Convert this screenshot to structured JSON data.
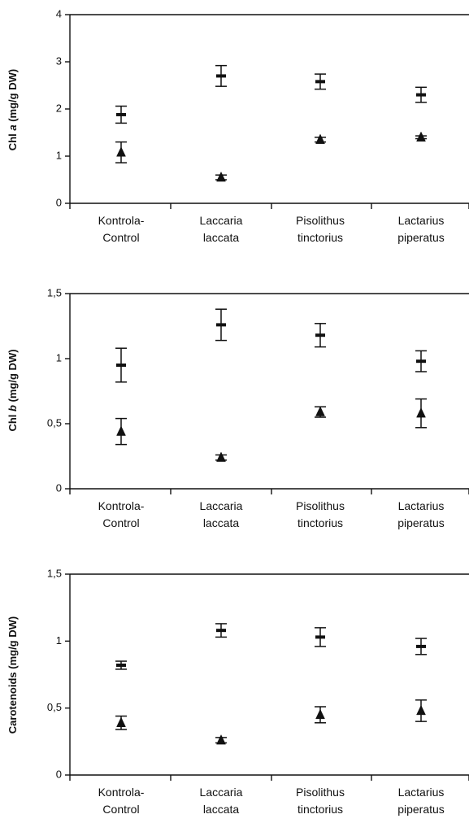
{
  "chart_data": [
    {
      "type": "scatter",
      "ylabel_prefix": "Chl ",
      "ylabel_italic": "a",
      "ylabel_suffix": "  (mg/g DW)",
      "categories": [
        "Kontrola-\nControl",
        "Laccaria\nlaccata",
        "Pisolithus\ntinctorius",
        "Lactarius\npiperatus"
      ],
      "yticks": [
        "0",
        "1",
        "2",
        "3",
        "4"
      ],
      "ylim": [
        0,
        4
      ],
      "grid": false,
      "series": [
        {
          "marker": "dash",
          "values": [
            1.88,
            2.7,
            2.58,
            2.3
          ],
          "errors": [
            0.18,
            0.22,
            0.16,
            0.16
          ]
        },
        {
          "marker": "triangle",
          "values": [
            1.08,
            0.55,
            1.35,
            1.4
          ],
          "errors": [
            0.22,
            0.05,
            0.05,
            0.03
          ]
        }
      ]
    },
    {
      "type": "scatter",
      "ylabel_prefix": "Chl ",
      "ylabel_italic": "b",
      "ylabel_suffix": "  (mg/g DW)",
      "categories": [
        "Kontrola-\nControl",
        "Laccaria\nlaccata",
        "Pisolithus\ntinctorius",
        "Lactarius\npiperatus"
      ],
      "yticks": [
        "0",
        "0,5",
        "1",
        "1,5"
      ],
      "ylim": [
        0,
        1.5
      ],
      "grid": false,
      "series": [
        {
          "marker": "dash",
          "values": [
            0.95,
            1.26,
            1.18,
            0.98
          ],
          "errors": [
            0.13,
            0.12,
            0.09,
            0.08
          ]
        },
        {
          "marker": "triangle",
          "values": [
            0.44,
            0.24,
            0.59,
            0.58
          ],
          "errors": [
            0.1,
            0.02,
            0.04,
            0.11
          ]
        }
      ]
    },
    {
      "type": "scatter",
      "ylabel_prefix": "Carotenoids",
      "ylabel_italic": "",
      "ylabel_suffix": "  (mg/g DW)",
      "categories": [
        "Kontrola-\nControl",
        "Laccaria\nlaccata",
        "Pisolithus\ntinctorius",
        "Lactarius\npiperatus"
      ],
      "yticks": [
        "0",
        "0,5",
        "1",
        "1,5"
      ],
      "ylim": [
        0,
        1.5
      ],
      "grid": false,
      "series": [
        {
          "marker": "dash",
          "values": [
            0.82,
            1.08,
            1.03,
            0.96
          ],
          "errors": [
            0.03,
            0.05,
            0.07,
            0.06
          ]
        },
        {
          "marker": "triangle",
          "values": [
            0.39,
            0.26,
            0.45,
            0.48
          ],
          "errors": [
            0.05,
            0.02,
            0.06,
            0.08
          ]
        }
      ]
    }
  ]
}
